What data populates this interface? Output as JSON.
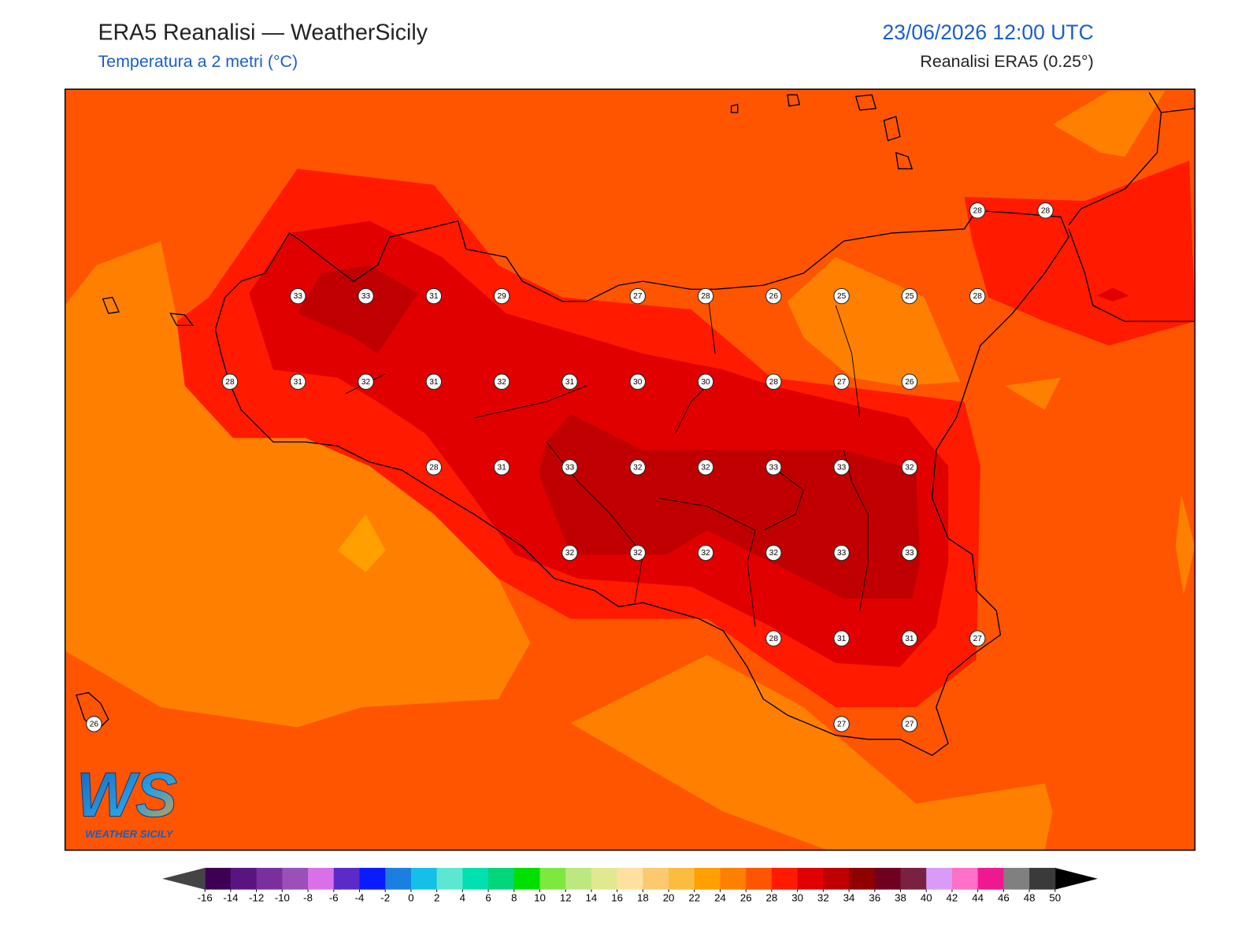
{
  "header": {
    "title": "ERA5 Reanalisi — WeatherSicily",
    "subtitle": "Temperatura a 2 metri (°C)",
    "datetime": "23/06/2026 12:00 UTC",
    "source": "Reanalisi ERA5 (0.25°)"
  },
  "stations": [
    [
      null,
      null,
      null,
      null,
      null,
      null,
      null,
      null,
      null,
      null,
      null,
      null,
      null,
      28,
      28
    ],
    [
      null,
      null,
      null,
      33,
      33,
      31,
      29,
      null,
      27,
      28,
      26,
      25,
      25,
      28,
      null
    ],
    [
      null,
      null,
      28,
      31,
      32,
      31,
      32,
      31,
      30,
      30,
      28,
      27,
      26,
      null,
      null
    ],
    [
      null,
      null,
      null,
      null,
      null,
      28,
      31,
      33,
      32,
      32,
      33,
      33,
      32,
      null,
      null
    ],
    [
      null,
      null,
      null,
      null,
      null,
      null,
      null,
      32,
      32,
      32,
      32,
      33,
      33,
      null,
      null
    ],
    [
      null,
      null,
      null,
      null,
      null,
      null,
      null,
      null,
      null,
      null,
      28,
      31,
      31,
      27,
      null
    ],
    [
      26,
      null,
      null,
      null,
      null,
      null,
      null,
      null,
      null,
      null,
      null,
      27,
      27,
      null,
      null
    ]
  ],
  "colorbar": {
    "ticks": [
      -16,
      -14,
      -12,
      -10,
      -8,
      -6,
      -4,
      -2,
      0,
      2,
      4,
      6,
      8,
      10,
      12,
      14,
      16,
      18,
      20,
      22,
      24,
      26,
      28,
      30,
      32,
      34,
      36,
      38,
      40,
      42,
      44,
      46,
      48,
      50
    ],
    "colors": [
      "#3d0055",
      "#5a1480",
      "#7a2f9e",
      "#9b4fb8",
      "#d970e8",
      "#5a2bc8",
      "#0a1bff",
      "#1a7fe0",
      "#14c0e8",
      "#5ce8d0",
      "#00e0b0",
      "#00d67a",
      "#00e000",
      "#7de840",
      "#bde880",
      "#e0e890",
      "#ffe0a0",
      "#fcc870",
      "#fcbc40",
      "#ff9f00",
      "#ff8000",
      "#ff5500",
      "#ff1a00",
      "#e00000",
      "#c00000",
      "#900000",
      "#700020",
      "#7a2040",
      "#d89cf8",
      "#ff70c8",
      "#f01890",
      "#808080",
      "#3a3a3a"
    ],
    "under_color": "#444444",
    "over_color": "#000000"
  },
  "logo": {
    "mark": "WS",
    "text": "WEATHER SICILY"
  }
}
